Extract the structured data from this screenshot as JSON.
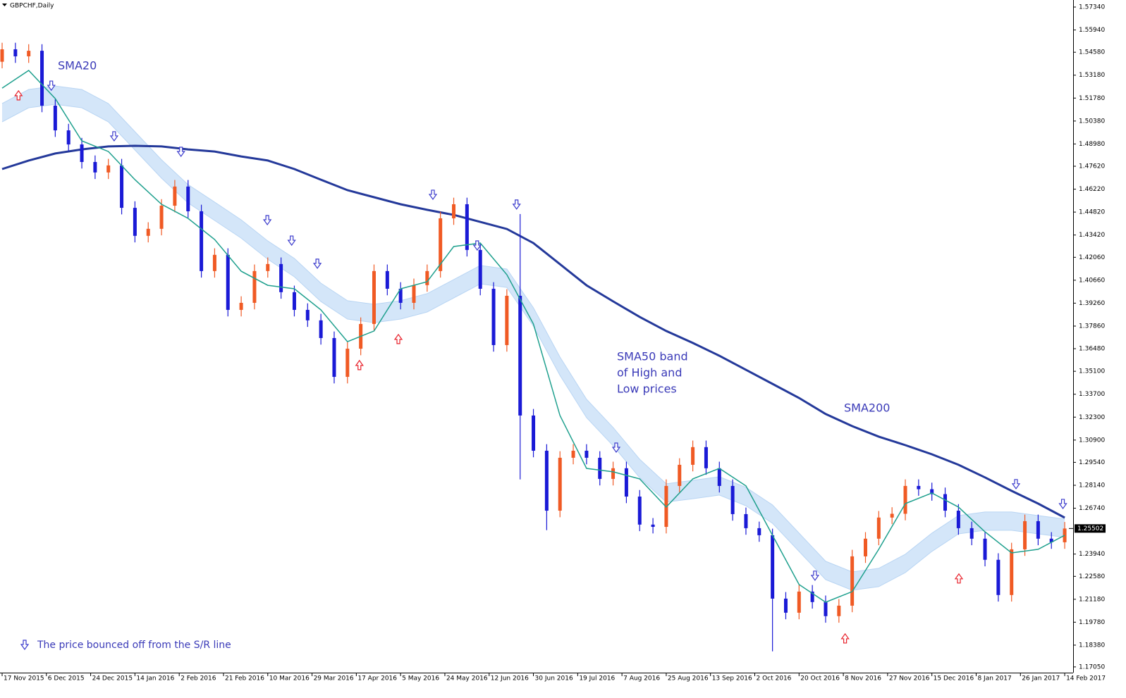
{
  "chart_data": {
    "type": "candlestick",
    "symbol": "GBPCHF,Daily",
    "x": [
      0,
      3,
      6,
      9,
      12,
      15,
      18,
      21,
      24,
      27,
      30,
      33,
      36,
      39,
      42,
      45,
      48,
      51,
      54,
      57,
      60,
      63,
      66,
      69,
      72,
      75,
      78,
      81,
      84,
      87,
      90,
      93,
      96,
      99,
      102,
      105,
      108,
      111,
      114,
      117,
      120,
      123,
      126,
      129,
      132,
      135,
      138,
      141,
      144,
      147,
      150,
      153,
      156,
      159,
      162,
      165,
      168,
      171,
      174,
      177,
      180,
      183,
      186,
      189,
      192,
      195,
      198,
      201,
      204,
      207,
      210,
      213,
      216,
      219,
      222,
      225,
      228,
      231,
      234,
      237,
      240
    ],
    "open": [
      1.54,
      1.5476,
      1.5433,
      1.5467,
      1.5132,
      1.4981,
      1.4895,
      1.4788,
      1.4724,
      1.4767,
      1.4508,
      1.4337,
      1.438,
      1.4521,
      1.4638,
      1.4487,
      1.4122,
      1.4221,
      1.3885,
      1.3928,
      1.4122,
      1.4165,
      1.3993,
      1.3885,
      1.3821,
      1.3713,
      1.3476,
      1.3648,
      1.3799,
      1.4122,
      1.4014,
      1.3928,
      1.4036,
      1.4122,
      1.4444,
      1.453,
      1.4251,
      1.4014,
      1.367,
      1.3971,
      1.324,
      1.3025,
      1.2659,
      1.2982,
      1.3025,
      1.2982,
      1.2853,
      1.2918,
      1.2745,
      1.2574,
      1.256,
      1.281,
      1.2939,
      1.3047,
      1.2918,
      1.281,
      1.2638,
      1.2552,
      1.2509,
      1.2122,
      1.2036,
      1.2165,
      1.2101,
      1.2015,
      1.2079,
      1.238,
      1.2488,
      1.2617,
      1.264,
      1.281,
      1.279,
      1.276,
      1.2659,
      1.2552,
      1.2488,
      1.2359,
      1.2144,
      1.2423,
      1.2595,
      1.2488,
      1.2466
    ],
    "high": [
      1.5516,
      1.5516,
      1.5507,
      1.5507,
      1.5172,
      1.5021,
      1.4935,
      1.4828,
      1.4807,
      1.4807,
      1.4548,
      1.442,
      1.4561,
      1.4678,
      1.4678,
      1.4527,
      1.4261,
      1.4261,
      1.3968,
      1.4162,
      1.4205,
      1.4205,
      1.4033,
      1.3925,
      1.3861,
      1.3753,
      1.3688,
      1.3839,
      1.4162,
      1.4162,
      1.4054,
      1.4076,
      1.4162,
      1.4484,
      1.457,
      1.457,
      1.4291,
      1.4054,
      1.4011,
      1.447,
      1.328,
      1.3065,
      1.3022,
      1.3065,
      1.3065,
      1.3022,
      1.2958,
      1.2958,
      1.2785,
      1.2614,
      1.285,
      1.2979,
      1.3087,
      1.3087,
      1.2958,
      1.285,
      1.2678,
      1.2592,
      1.2549,
      1.2162,
      1.2205,
      1.2205,
      1.2141,
      1.2119,
      1.242,
      1.2528,
      1.2657,
      1.268,
      1.285,
      1.285,
      1.283,
      1.28,
      1.2699,
      1.2592,
      1.2528,
      1.2399,
      1.2463,
      1.2635,
      1.2635,
      1.2528,
      1.259
    ],
    "low": [
      1.536,
      1.5393,
      1.5393,
      1.5092,
      1.4941,
      1.4855,
      1.4748,
      1.4684,
      1.4684,
      1.4468,
      1.4297,
      1.4297,
      1.434,
      1.4481,
      1.4447,
      1.4082,
      1.4082,
      1.3845,
      1.3845,
      1.3888,
      1.4082,
      1.3953,
      1.3845,
      1.3781,
      1.3673,
      1.3436,
      1.3436,
      1.3608,
      1.3759,
      1.3974,
      1.3888,
      1.3888,
      1.3996,
      1.4082,
      1.4404,
      1.4211,
      1.3974,
      1.363,
      1.363,
      1.285,
      1.2985,
      1.254,
      1.2619,
      1.2942,
      1.2942,
      1.2813,
      1.2813,
      1.2705,
      1.2534,
      1.252,
      1.252,
      1.277,
      1.2899,
      1.2878,
      1.277,
      1.2598,
      1.2512,
      1.2469,
      1.18,
      1.1996,
      1.1996,
      1.2061,
      1.1975,
      1.1975,
      1.2039,
      1.234,
      1.2448,
      1.2577,
      1.26,
      1.275,
      1.272,
      1.2619,
      1.2512,
      1.2448,
      1.2319,
      1.2104,
      1.2104,
      1.2383,
      1.2448,
      1.2426,
      1.2426
    ],
    "close": [
      1.5476,
      1.5433,
      1.5467,
      1.5132,
      1.4981,
      1.4895,
      1.4788,
      1.4724,
      1.4767,
      1.4508,
      1.4337,
      1.438,
      1.4521,
      1.4638,
      1.4487,
      1.4122,
      1.4221,
      1.3885,
      1.3928,
      1.4122,
      1.4165,
      1.3993,
      1.3885,
      1.3821,
      1.3713,
      1.3476,
      1.3648,
      1.3799,
      1.4122,
      1.4014,
      1.3928,
      1.4036,
      1.4122,
      1.4444,
      1.453,
      1.4251,
      1.4014,
      1.367,
      1.3971,
      1.324,
      1.3025,
      1.2659,
      1.2982,
      1.3025,
      1.2982,
      1.2853,
      1.2918,
      1.2745,
      1.2574,
      1.256,
      1.281,
      1.2939,
      1.3047,
      1.2918,
      1.281,
      1.2638,
      1.2552,
      1.2509,
      1.2122,
      1.2036,
      1.2165,
      1.2101,
      1.2015,
      1.2079,
      1.238,
      1.2488,
      1.2617,
      1.264,
      1.281,
      1.279,
      1.276,
      1.2659,
      1.2552,
      1.2488,
      1.2359,
      1.2144,
      1.2423,
      1.2595,
      1.2488,
      1.2466,
      1.255
    ],
    "up_color": "#f05a24",
    "down_color": "#1a1ad6",
    "overlay_x": [
      0,
      6,
      12,
      18,
      24,
      30,
      36,
      42,
      48,
      54,
      60,
      66,
      72,
      78,
      84,
      90,
      96,
      102,
      108,
      114,
      120,
      126,
      132,
      138,
      144,
      150,
      156,
      162,
      168,
      174,
      180,
      186,
      192,
      198,
      204,
      210,
      216,
      222,
      228,
      234,
      240
    ],
    "band_fill": "#d4e6f9",
    "band_upper": {
      "color": "#b9d5f3",
      "values": [
        1.5145,
        1.5231,
        1.5252,
        1.5231,
        1.5145,
        1.4973,
        1.4801,
        1.465,
        1.4543,
        1.4435,
        1.4306,
        1.4199,
        1.4048,
        1.3941,
        1.3919,
        1.3941,
        1.3984,
        1.407,
        1.4156,
        1.4134,
        1.3898,
        1.3597,
        1.3339,
        1.3167,
        1.2973,
        1.2823,
        1.2844,
        1.2866,
        1.2801,
        1.2694,
        1.2522,
        1.235,
        1.2285,
        1.2307,
        1.2393,
        1.2522,
        1.2629,
        1.2651,
        1.2651,
        1.2629,
        1.2608
      ]
    },
    "band_lower": {
      "color": "#b9d5f3",
      "values": [
        1.5033,
        1.5119,
        1.514,
        1.5119,
        1.5033,
        1.4861,
        1.4689,
        1.4538,
        1.4431,
        1.4323,
        1.4194,
        1.4087,
        1.3936,
        1.3829,
        1.3807,
        1.3829,
        1.3872,
        1.3958,
        1.4044,
        1.4022,
        1.3786,
        1.3485,
        1.3227,
        1.3055,
        1.2861,
        1.2711,
        1.2732,
        1.2754,
        1.2689,
        1.2582,
        1.241,
        1.2238,
        1.2173,
        1.2195,
        1.2281,
        1.241,
        1.2517,
        1.2539,
        1.2539,
        1.2517,
        1.2496
      ]
    },
    "sma20": {
      "color": "#1fa08e",
      "values": [
        1.5239,
        1.5347,
        1.5175,
        1.4917,
        1.4852,
        1.468,
        1.453,
        1.4444,
        1.4315,
        1.4121,
        1.4035,
        1.4014,
        1.3885,
        1.3691,
        1.3756,
        1.4014,
        1.4057,
        1.4272,
        1.4293,
        1.41,
        1.3799,
        1.324,
        1.2917,
        1.2896,
        1.2853,
        1.2681,
        1.2853,
        1.2917,
        1.281,
        1.2509,
        1.2208,
        1.21,
        1.2165,
        1.2423,
        1.2702,
        1.2767,
        1.2681,
        1.253,
        1.2401,
        1.2423,
        1.2509
      ]
    },
    "sma200": {
      "color": "#24399a",
      "values": [
        1.4745,
        1.4797,
        1.484,
        1.4865,
        1.4883,
        1.4887,
        1.4883,
        1.4865,
        1.4852,
        1.4822,
        1.4797,
        1.4745,
        1.468,
        1.4616,
        1.4573,
        1.453,
        1.4496,
        1.4465,
        1.4422,
        1.4379,
        1.4293,
        1.4164,
        1.4035,
        1.3937,
        1.3842,
        1.3756,
        1.3683,
        1.3605,
        1.3519,
        1.3433,
        1.3347,
        1.3249,
        1.3175,
        1.3111,
        1.3059,
        1.3003,
        1.2939,
        1.2862,
        1.278,
        1.2702,
        1.2616
      ]
    },
    "arrows_down": {
      "color": "#3a3acc",
      "x": [
        11.1,
        25.3,
        40.4,
        59.9,
        65.4,
        71.2,
        97.3,
        107.3,
        116.2,
        138.7,
        183.6,
        229.0,
        239.6
      ],
      "y": [
        1.5252,
        1.4943,
        1.4848,
        1.4431,
        1.4306,
        1.4165,
        1.4586,
        1.4276,
        1.4526,
        1.3042,
        1.226,
        1.2819,
        1.2698
      ]
    },
    "arrows_up": {
      "color": "#e8202a",
      "x": [
        3.7,
        80.7,
        89.5,
        190.4,
        216.1
      ],
      "y": [
        1.5197,
        1.355,
        1.3709,
        1.1881,
        1.2247
      ]
    },
    "xlim": [
      -0.48,
      241.9
    ],
    "ylim": [
      1.167,
      1.5777
    ],
    "xticks": [
      {
        "value": 0,
        "label": "17 Nov 2015"
      },
      {
        "value": 10,
        "label": "6 Dec 2015"
      },
      {
        "value": 20,
        "label": "24 Dec 2015"
      },
      {
        "value": 30,
        "label": "14 Jan 2016"
      },
      {
        "value": 40,
        "label": "2 Feb 2016"
      },
      {
        "value": 50,
        "label": "21 Feb 2016"
      },
      {
        "value": 60,
        "label": "10 Mar 2016"
      },
      {
        "value": 70,
        "label": "29 Mar 2016"
      },
      {
        "value": 80,
        "label": "17 Apr 2016"
      },
      {
        "value": 90,
        "label": "5 May 2016"
      },
      {
        "value": 100,
        "label": "24 May 2016"
      },
      {
        "value": 110,
        "label": "12 Jun 2016"
      },
      {
        "value": 120,
        "label": "30 Jun 2016"
      },
      {
        "value": 130,
        "label": "19 Jul 2016"
      },
      {
        "value": 140,
        "label": "7 Aug 2016"
      },
      {
        "value": 150,
        "label": "25 Aug 2016"
      },
      {
        "value": 160,
        "label": "13 Sep 2016"
      },
      {
        "value": 170,
        "label": "2 Oct 2016"
      },
      {
        "value": 180,
        "label": "20 Oct 2016"
      },
      {
        "value": 190,
        "label": "8 Nov 2016"
      },
      {
        "value": 200,
        "label": "27 Nov 2016"
      },
      {
        "value": 210,
        "label": "15 Dec 2016"
      },
      {
        "value": 220,
        "label": "8 Jan 2017"
      },
      {
        "value": 230,
        "label": "26 Jan 2017"
      },
      {
        "value": 240,
        "label": "14 Feb 2017"
      }
    ],
    "yticks": [
      {
        "value": 1.5734,
        "label": "1.57340"
      },
      {
        "value": 1.5594,
        "label": "1.55940"
      },
      {
        "value": 1.5458,
        "label": "1.54580"
      },
      {
        "value": 1.5318,
        "label": "1.53180"
      },
      {
        "value": 1.5178,
        "label": "1.51780"
      },
      {
        "value": 1.5038,
        "label": "1.50380"
      },
      {
        "value": 1.4898,
        "label": "1.48980"
      },
      {
        "value": 1.4762,
        "label": "1.47620"
      },
      {
        "value": 1.4622,
        "label": "1.46220"
      },
      {
        "value": 1.4482,
        "label": "1.44820"
      },
      {
        "value": 1.4342,
        "label": "1.43420"
      },
      {
        "value": 1.4206,
        "label": "1.42060"
      },
      {
        "value": 1.4066,
        "label": "1.40660"
      },
      {
        "value": 1.3926,
        "label": "1.39260"
      },
      {
        "value": 1.3786,
        "label": "1.37860"
      },
      {
        "value": 1.3648,
        "label": "1.36480"
      },
      {
        "value": 1.351,
        "label": "1.35100"
      },
      {
        "value": 1.337,
        "label": "1.33700"
      },
      {
        "value": 1.323,
        "label": "1.32300"
      },
      {
        "value": 1.309,
        "label": "1.30900"
      },
      {
        "value": 1.2954,
        "label": "1.29540"
      },
      {
        "value": 1.2814,
        "label": "1.28140"
      },
      {
        "value": 1.2674,
        "label": "1.26740"
      },
      {
        "value": 1.2394,
        "label": "1.23940"
      },
      {
        "value": 1.2258,
        "label": "1.22580"
      },
      {
        "value": 1.2118,
        "label": "1.21180"
      },
      {
        "value": 1.1978,
        "label": "1.19780"
      },
      {
        "value": 1.1838,
        "label": "1.18380"
      },
      {
        "value": 1.1705,
        "label": "1.17050"
      }
    ],
    "last_price": 1.25502,
    "annotations": [
      "SMA20",
      "SMA50 band",
      "of High and",
      "Low prices",
      "SMA200",
      "The price bounced off from the S/R line"
    ]
  }
}
